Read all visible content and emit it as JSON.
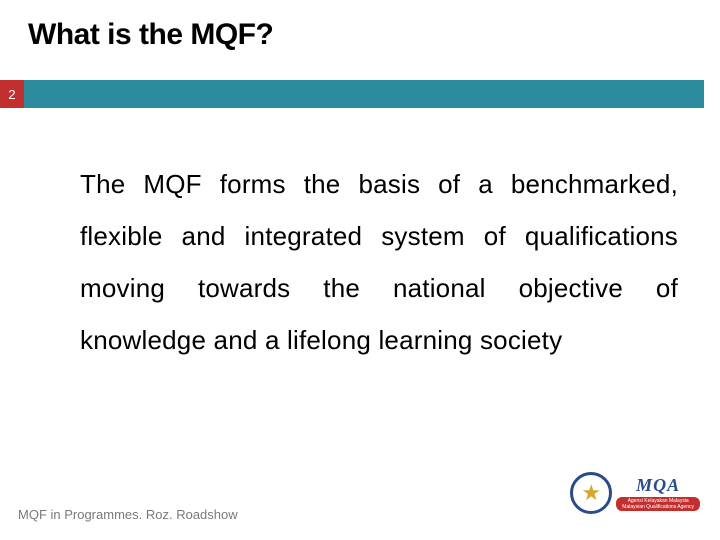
{
  "title": "What is the MQF?",
  "slide_number": "2",
  "body": "The MQF forms the basis of a benchmarked, flexible and integrated system of qualifications moving towards the national objective of knowledge and a lifelong learning society",
  "footer": "MQF in Programmes. Roz. Roadshow",
  "logo": {
    "main": "MQA",
    "banner_line1": "Agensi Kelayakan Malaysia",
    "banner_line2": "Malaysian Qualifications Agency"
  },
  "colors": {
    "accent_red": "#c32f2f",
    "accent_teal": "#2d8b9e",
    "logo_blue": "#2a4a8a",
    "logo_gold": "#d4a830",
    "footer_gray": "#7a7a7a"
  }
}
